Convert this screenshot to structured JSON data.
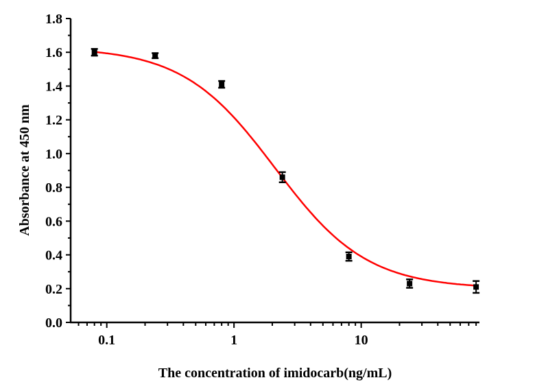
{
  "chart_data": {
    "type": "scatter",
    "title": "",
    "xlabel": "The concentration of imidocarb(ng/mL)",
    "ylabel": "Absorbance at 450 nm",
    "xscale": "log",
    "xlim": [
      0.052,
      85
    ],
    "ylim": [
      0,
      1.8
    ],
    "xticks": [
      "0.1",
      "1",
      "10"
    ],
    "xtick_values": [
      0.1,
      1,
      10
    ],
    "yticks": [
      "0.0",
      "0.2",
      "0.4",
      "0.6",
      "0.8",
      "1.0",
      "1.2",
      "1.4",
      "1.6",
      "1.8"
    ],
    "grid": false,
    "legend": "none",
    "series": [
      {
        "x": [
          0.08,
          0.24,
          0.8,
          2.4,
          8,
          24,
          80
        ],
        "y": [
          1.6,
          1.58,
          1.41,
          0.86,
          0.39,
          0.23,
          0.21
        ],
        "error": [
          0.02,
          0.015,
          0.02,
          0.03,
          0.025,
          0.025,
          0.035
        ],
        "color": "#000000"
      }
    ],
    "fit": {
      "model": "four-parameter logistic",
      "top": 1.63,
      "bottom": 0.2,
      "ic50": 2.1,
      "slope": 1.2,
      "color": "#ff0000"
    }
  }
}
